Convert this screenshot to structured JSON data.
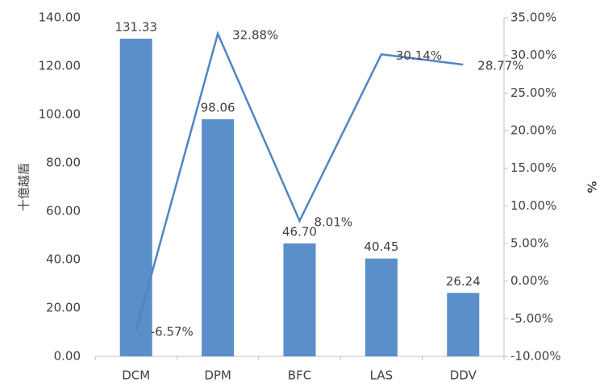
{
  "chart_data": {
    "type": "bar+line",
    "y_label": "十億越盾",
    "y2_label": "%",
    "categories": [
      "DCM",
      "DPM",
      "BFC",
      "LAS",
      "DDV"
    ],
    "series": [
      {
        "type": "bar",
        "color": "#5b8fca",
        "values": [
          131.33,
          98.06,
          46.7,
          40.45,
          26.24
        ],
        "value_labels": [
          "131.33",
          "98.06",
          "46.70",
          "40.45",
          "26.24"
        ]
      },
      {
        "type": "line",
        "axis": "y2",
        "color": "#5085c4",
        "values": [
          -6.57,
          32.88,
          8.01,
          30.14,
          28.77
        ],
        "value_labels": [
          "-6.57%",
          "32.88%",
          "8.01%",
          "30.14%",
          "28.77%"
        ]
      }
    ],
    "ylim": [
      0,
      140
    ],
    "yticks": [
      {
        "value": 0,
        "label": "0.00"
      },
      {
        "value": 20,
        "label": "20.00"
      },
      {
        "value": 40,
        "label": "40.00"
      },
      {
        "value": 60,
        "label": "60.00"
      },
      {
        "value": 80,
        "label": "80.00"
      },
      {
        "value": 100,
        "label": "100.00"
      },
      {
        "value": 120,
        "label": "120.00"
      },
      {
        "value": 140,
        "label": "140.00"
      }
    ],
    "y2lim": [
      -10,
      35
    ],
    "y2ticks": [
      {
        "value": -10,
        "label": "-10.00%"
      },
      {
        "value": -5,
        "label": "-5.00%"
      },
      {
        "value": 0,
        "label": "0.00%"
      },
      {
        "value": 5,
        "label": "5.00%"
      },
      {
        "value": 10,
        "label": "10.00%"
      },
      {
        "value": 15,
        "label": "15.00%"
      },
      {
        "value": 20,
        "label": "20.00%"
      },
      {
        "value": 25,
        "label": "25.00%"
      },
      {
        "value": 30,
        "label": "30.00%"
      },
      {
        "value": 35,
        "label": "35.00%"
      }
    ],
    "grid": false
  }
}
